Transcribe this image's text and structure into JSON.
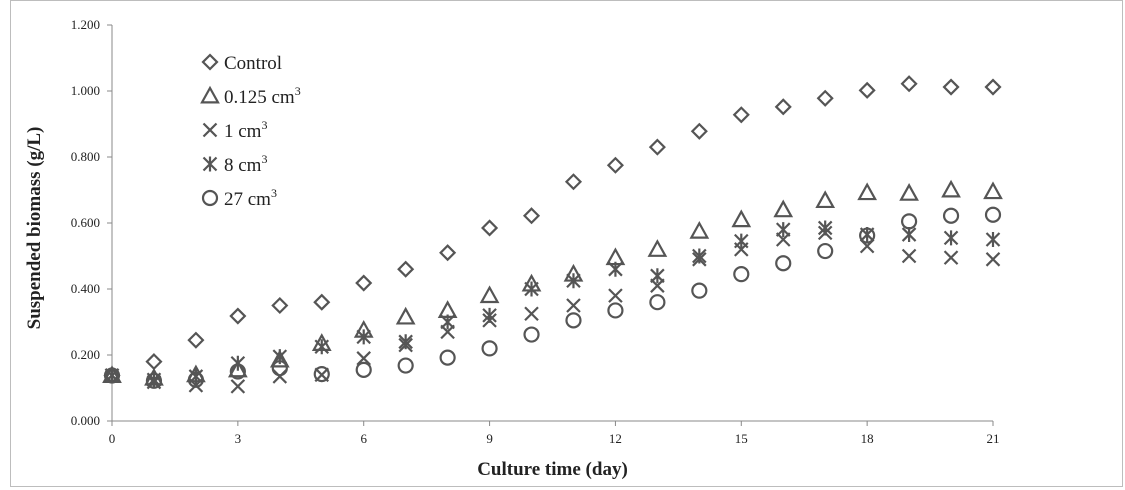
{
  "chart_data": {
    "type": "scatter",
    "title": "",
    "xlabel": "Culture time (day)",
    "ylabel": "Suspended biomass (g/L)",
    "xlim": [
      0,
      21
    ],
    "ylim": [
      0,
      1.2
    ],
    "x_ticks": [
      "0",
      "3",
      "6",
      "9",
      "12",
      "15",
      "18",
      "21"
    ],
    "y_ticks": [
      "0.000",
      "0.200",
      "0.400",
      "0.600",
      "0.800",
      "1.000",
      "1.200"
    ],
    "legend_position": "top-left",
    "grid": false,
    "series": [
      {
        "name": "Control",
        "marker": "diamond",
        "x": [
          0,
          1,
          2,
          3,
          4,
          5,
          6,
          7,
          8,
          9,
          10,
          11,
          12,
          13,
          14,
          15,
          16,
          17,
          18,
          19,
          20,
          21
        ],
        "values": [
          0.138,
          0.18,
          0.245,
          0.318,
          0.35,
          0.36,
          0.418,
          0.46,
          0.51,
          0.585,
          0.622,
          0.725,
          0.775,
          0.83,
          0.878,
          0.928,
          0.952,
          0.978,
          1.002,
          1.022,
          1.012,
          1.012
        ]
      },
      {
        "name": "0.125 cm",
        "name_sup": "3",
        "marker": "triangle",
        "x": [
          0,
          1,
          2,
          3,
          4,
          5,
          6,
          7,
          8,
          9,
          10,
          11,
          12,
          13,
          14,
          15,
          16,
          17,
          18,
          19,
          20,
          21
        ],
        "values": [
          0.138,
          0.13,
          0.14,
          0.155,
          0.185,
          0.235,
          0.275,
          0.315,
          0.335,
          0.38,
          0.415,
          0.445,
          0.495,
          0.52,
          0.575,
          0.61,
          0.64,
          0.668,
          0.692,
          0.69,
          0.7,
          0.695
        ]
      },
      {
        "name": "1 cm",
        "name_sup": "3",
        "marker": "x",
        "x": [
          0,
          1,
          2,
          3,
          4,
          5,
          6,
          7,
          8,
          9,
          10,
          11,
          12,
          13,
          14,
          15,
          16,
          17,
          18,
          19,
          20,
          21
        ],
        "values": [
          0.138,
          0.118,
          0.108,
          0.105,
          0.135,
          0.14,
          0.19,
          0.23,
          0.27,
          0.305,
          0.325,
          0.35,
          0.38,
          0.41,
          0.49,
          0.52,
          0.55,
          0.57,
          0.53,
          0.5,
          0.495,
          0.49
        ]
      },
      {
        "name": "8 cm",
        "name_sup": "3",
        "marker": "asterisk",
        "x": [
          0,
          1,
          2,
          3,
          4,
          5,
          6,
          7,
          8,
          9,
          10,
          11,
          12,
          13,
          14,
          15,
          16,
          17,
          18,
          19,
          20,
          21
        ],
        "values": [
          0.138,
          0.125,
          0.135,
          0.175,
          0.195,
          0.225,
          0.255,
          0.24,
          0.3,
          0.32,
          0.4,
          0.425,
          0.46,
          0.44,
          0.5,
          0.545,
          0.58,
          0.585,
          0.565,
          0.565,
          0.555,
          0.55
        ]
      },
      {
        "name": "27 cm",
        "name_sup": "3",
        "marker": "circle",
        "x": [
          0,
          1,
          2,
          3,
          4,
          5,
          6,
          7,
          8,
          9,
          10,
          11,
          12,
          13,
          14,
          15,
          16,
          17,
          18,
          19,
          20,
          21
        ],
        "values": [
          0.138,
          0.122,
          0.125,
          0.15,
          0.16,
          0.142,
          0.155,
          0.168,
          0.192,
          0.22,
          0.262,
          0.305,
          0.335,
          0.36,
          0.395,
          0.445,
          0.478,
          0.515,
          0.562,
          0.605,
          0.622,
          0.625
        ]
      }
    ]
  }
}
